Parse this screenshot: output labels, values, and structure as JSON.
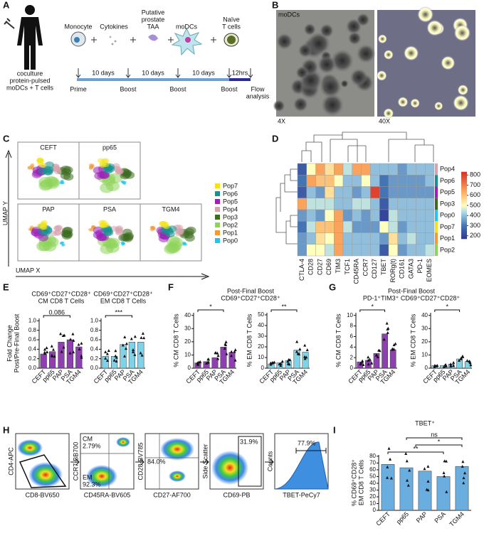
{
  "panel_a": {
    "letter": "A",
    "cells": [
      [
        "Monocyte"
      ],
      [
        "Cytokines"
      ],
      [
        "Putative",
        "prostate",
        "TAA"
      ],
      [
        "moDCs"
      ],
      [
        "Naïve",
        "T cells"
      ]
    ],
    "culture": [
      "coculture",
      "protein-pulsed",
      "moDCs + T cells"
    ],
    "intervals": [
      "10 days",
      "10 days",
      "10 days",
      "12hrs"
    ],
    "stages": [
      [
        "Prime"
      ],
      [
        "Boost"
      ],
      [
        "Boost"
      ],
      [
        "Boost"
      ],
      [
        "Flow",
        "analysis"
      ]
    ]
  },
  "panel_b": {
    "letter": "B",
    "label": "moDCs",
    "mags": [
      "4X",
      "40X"
    ]
  },
  "panel_c": {
    "letter": "C",
    "samples": [
      "CEFT",
      "pp65",
      "PAP",
      "PSA",
      "TGM4"
    ],
    "y_axis": "UMAP Y",
    "x_axis": "UMAP X",
    "legend": [
      {
        "name": "Pop7",
        "color": "#f2e41c"
      },
      {
        "name": "Pop6",
        "color": "#16918f"
      },
      {
        "name": "Pop5",
        "color": "#9b1fb8"
      },
      {
        "name": "Pop4",
        "color": "#d9a3ad"
      },
      {
        "name": "Pop3",
        "color": "#3d6b1f"
      },
      {
        "name": "Pop2",
        "color": "#8ed35a"
      },
      {
        "name": "Pop1",
        "color": "#f29a3a"
      },
      {
        "name": "Pop0",
        "color": "#25c4ee"
      }
    ]
  },
  "panel_d": {
    "letter": "D",
    "rows": [
      "Pop4",
      "Pop6",
      "Pop5",
      "Pop3",
      "Pop0",
      "Pop7",
      "Pop1",
      "Pop2"
    ],
    "row_colors": [
      "#d9a3ad",
      "#16918f",
      "#9b1fb8",
      "#3d6b1f",
      "#25c4ee",
      "#f2e41c",
      "#f29a3a",
      "#8ed35a"
    ],
    "columns": [
      "CTLA-4",
      "CD28",
      "CD27",
      "CD69",
      "TIM3",
      "TCF1",
      "CD45RA",
      "CCR7",
      "CD127",
      "TBET",
      "RORg(t)",
      "CD161",
      "GATA3",
      "PD-1",
      "EOMES"
    ],
    "values": [
      [
        250,
        500,
        650,
        550,
        650,
        450,
        650,
        650,
        400,
        400,
        400,
        350,
        400,
        400,
        400
      ],
      [
        300,
        650,
        600,
        600,
        500,
        400,
        400,
        500,
        400,
        300,
        350,
        350,
        350,
        350,
        400
      ],
      [
        250,
        400,
        350,
        550,
        400,
        400,
        350,
        400,
        800,
        300,
        350,
        350,
        350,
        350,
        350
      ],
      [
        650,
        450,
        450,
        450,
        400,
        400,
        450,
        450,
        400,
        250,
        400,
        400,
        400,
        400,
        400
      ],
      [
        350,
        400,
        350,
        500,
        650,
        350,
        400,
        350,
        400,
        200,
        450,
        400,
        400,
        400,
        400
      ],
      [
        300,
        450,
        600,
        600,
        650,
        450,
        350,
        350,
        350,
        500,
        450,
        350,
        400,
        400,
        400
      ],
      [
        350,
        400,
        550,
        500,
        650,
        400,
        400,
        400,
        400,
        350,
        550,
        400,
        450,
        400,
        400
      ],
      [
        350,
        500,
        500,
        450,
        650,
        400,
        400,
        400,
        400,
        250,
        500,
        350,
        400,
        400,
        450
      ]
    ],
    "clim": [
      170,
      830
    ],
    "colorbar_ticks": [
      800,
      700,
      600,
      500,
      400,
      300,
      200
    ]
  },
  "panel_e": {
    "letter": "E",
    "ylabel": [
      "Fold Change",
      "Post/Pre-Final Boost"
    ],
    "charts": [
      {
        "title": [
          "CD69⁺CD27⁺CD28⁺",
          "CM CD8 T Cells"
        ],
        "categories": [
          "CEFT",
          "pp65",
          "PAP",
          "PSA",
          "TGM4"
        ],
        "values": [
          0.3,
          0.35,
          0.55,
          0.6,
          0.45
        ],
        "ylim": [
          0,
          1.05
        ],
        "yticks": [
          {
            "value": 0,
            "label": "0.0"
          },
          {
            "value": 0.2,
            "label": "0.2"
          },
          {
            "value": 0.4,
            "label": "0.4"
          },
          {
            "value": 0.6,
            "label": "0.6"
          },
          {
            "value": 0.8,
            "label": "0.8"
          },
          {
            "value": 1,
            "label": "1.0"
          }
        ],
        "color": "#8e3fb0",
        "annotations": [
          "0.086"
        ]
      },
      {
        "title": [
          "CD69⁺CD27⁺CD28⁺",
          "EM CD8 T Cells"
        ],
        "categories": [
          "CEFT",
          "pp65",
          "PAP",
          "PSA",
          "TGM4"
        ],
        "values": [
          0.25,
          0.25,
          0.5,
          0.55,
          0.55
        ],
        "ylim": [
          0,
          1.05
        ],
        "yticks": [
          {
            "value": 0,
            "label": "0.0"
          },
          {
            "value": 0.2,
            "label": "0.2"
          },
          {
            "value": 0.4,
            "label": "0.4"
          },
          {
            "value": 0.6,
            "label": "0.6"
          },
          {
            "value": 0.8,
            "label": "0.8"
          },
          {
            "value": 1,
            "label": "1.0"
          }
        ],
        "color": "#7fd3e8",
        "annotations": [
          "***"
        ]
      }
    ]
  },
  "panel_f": {
    "letter": "F",
    "title": [
      "Post-Final Boost",
      "CD69⁺CD27⁺CD28⁺"
    ],
    "charts": [
      {
        "ylabel": [
          "% CM CD8 T Cells"
        ],
        "categories": [
          "CEFT",
          "pp65",
          "PAP",
          "PSA",
          "TGM4"
        ],
        "values": [
          4,
          5,
          8,
          16,
          12
        ],
        "ylim": [
          0,
          42
        ],
        "yticks": [
          0,
          10,
          20,
          30,
          40
        ],
        "color": "#8e3fb0",
        "annotations": [
          "*"
        ]
      },
      {
        "ylabel": [
          "% EM CD8 T Cells"
        ],
        "categories": [
          "CEFT",
          "pp65",
          "PAP",
          "PSA",
          "TGM4"
        ],
        "values": [
          4,
          5,
          7,
          17,
          15
        ],
        "ylim": [
          0,
          52
        ],
        "yticks": [
          0,
          10,
          20,
          30,
          40,
          50
        ],
        "color": "#7fd3e8",
        "annotations": [
          "**"
        ]
      }
    ]
  },
  "panel_g": {
    "letter": "G",
    "title": [
      "Post-Final Boost",
      "PD-1⁺TIM3⁺ CD69⁺CD27⁺CD28⁺"
    ],
    "charts": [
      {
        "ylabel": [
          "% CM CD8 T Cells"
        ],
        "categories": [
          "CEFT",
          "pp65",
          "PAP",
          "PSA",
          "TGM4"
        ],
        "values": [
          1.2,
          1.5,
          2.8,
          6.5,
          3.5
        ],
        "ylim": [
          0,
          10.5
        ],
        "yticks": [
          0,
          2,
          4,
          6,
          8,
          10
        ],
        "color": "#8e3fb0",
        "annotations": [
          "*"
        ]
      },
      {
        "ylabel": [
          "% EM CD8 T Cells"
        ],
        "categories": [
          "CEFT",
          "pp65",
          "PAP",
          "PSA",
          "TGM4"
        ],
        "values": [
          2,
          2,
          3,
          7,
          5
        ],
        "ylim": [
          0,
          42
        ],
        "yticks": [
          0,
          10,
          20,
          30,
          40
        ],
        "color": "#7fd3e8",
        "annotations": [
          "*"
        ]
      }
    ]
  },
  "panel_h": {
    "letter": "H",
    "plots": [
      {
        "ylabel": "CD4-APC",
        "xlabel": "CD8-BV650"
      },
      {
        "ylabel": "CCR7-BB700",
        "xlabel": "CD45RA-BV605",
        "gates": [
          "CM",
          "2.79%",
          "EM",
          "92.3%"
        ]
      },
      {
        "ylabel": "CD28-BV785",
        "xlabel": "CD27-AF700",
        "gates": [
          "84.0%"
        ]
      },
      {
        "ylabel": "Side Scatter",
        "xlabel": "CD69-PB",
        "gates": [
          "31.9%"
        ]
      },
      {
        "ylabel": "Counts",
        "xlabel": "TBET-PeCy7",
        "gates": [
          "77.9%"
        ]
      }
    ]
  },
  "panel_i": {
    "letter": "I",
    "charts": [
      {
        "title": [
          "TBET⁺"
        ],
        "ylabel": [
          "% CD69⁺CD28⁺",
          "EM CD8 T Cells"
        ],
        "categories": [
          "CEFT",
          "pp65",
          "PAP",
          "PSA",
          "TGM4"
        ],
        "values": [
          68,
          63,
          58,
          50,
          65
        ],
        "ylim": [
          0,
          82
        ],
        "yticks": [
          0,
          10,
          20,
          30,
          40,
          50,
          60,
          70,
          80
        ],
        "color": "#6aaee0",
        "annotations": [
          "**",
          "*",
          "ns"
        ]
      }
    ]
  }
}
